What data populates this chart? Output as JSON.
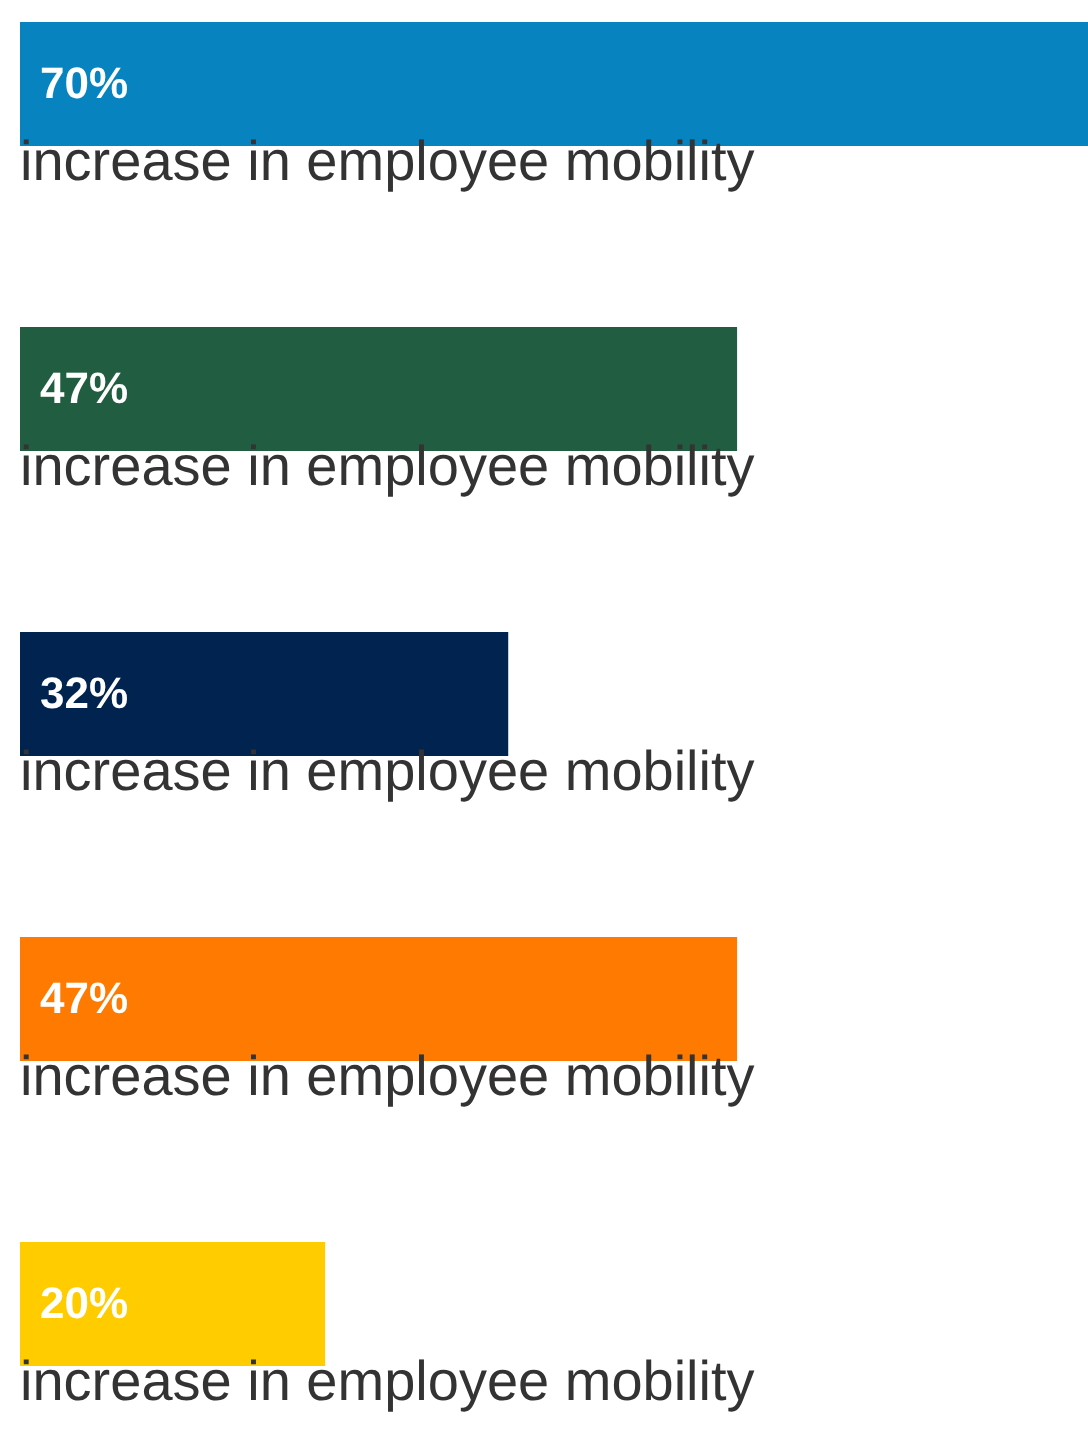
{
  "chart_data": {
    "type": "bar",
    "orientation": "horizontal",
    "categories": [
      "increase in employee mobility",
      "increase in employee mobility",
      "increase in employee mobility",
      "increase in employee mobility",
      "increase in employee mobility"
    ],
    "values": [
      70,
      47,
      32,
      47,
      20
    ],
    "colors": [
      "#0784c0",
      "#215e41",
      "#00234f",
      "#ff7a00",
      "#ffcc00"
    ],
    "value_labels": [
      "70%",
      "47%",
      "32%",
      "47%",
      "20%"
    ]
  }
}
